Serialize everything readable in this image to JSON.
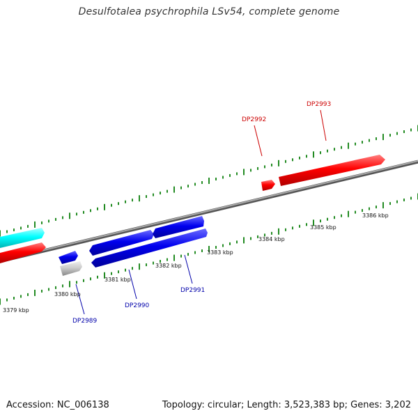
{
  "title": "Desulfotalea psychrophila LSv54, complete genome",
  "footer": {
    "accession": "Accession: NC_006138",
    "summary": "Topology: circular; Length: 3,523,383 bp; Genes: 3,202"
  },
  "scale": {
    "labels": [
      "3379 kbp",
      "3380 kbp",
      "3381 kbp",
      "3382 kbp",
      "3383 kbp",
      "3384 kbp",
      "3385 kbp",
      "3386 kbp"
    ]
  },
  "genes": {
    "labels": [
      "DP2989",
      "DP2990",
      "DP2991",
      "DP2992",
      "DP2993"
    ]
  },
  "colors": {
    "forward_strand": "#ff0000",
    "reverse_strand": "#0000ee",
    "rna": "#00e5e5",
    "other": "#bbbbbb",
    "ticks": "#228b22",
    "backbone": "#7f7f7f"
  }
}
